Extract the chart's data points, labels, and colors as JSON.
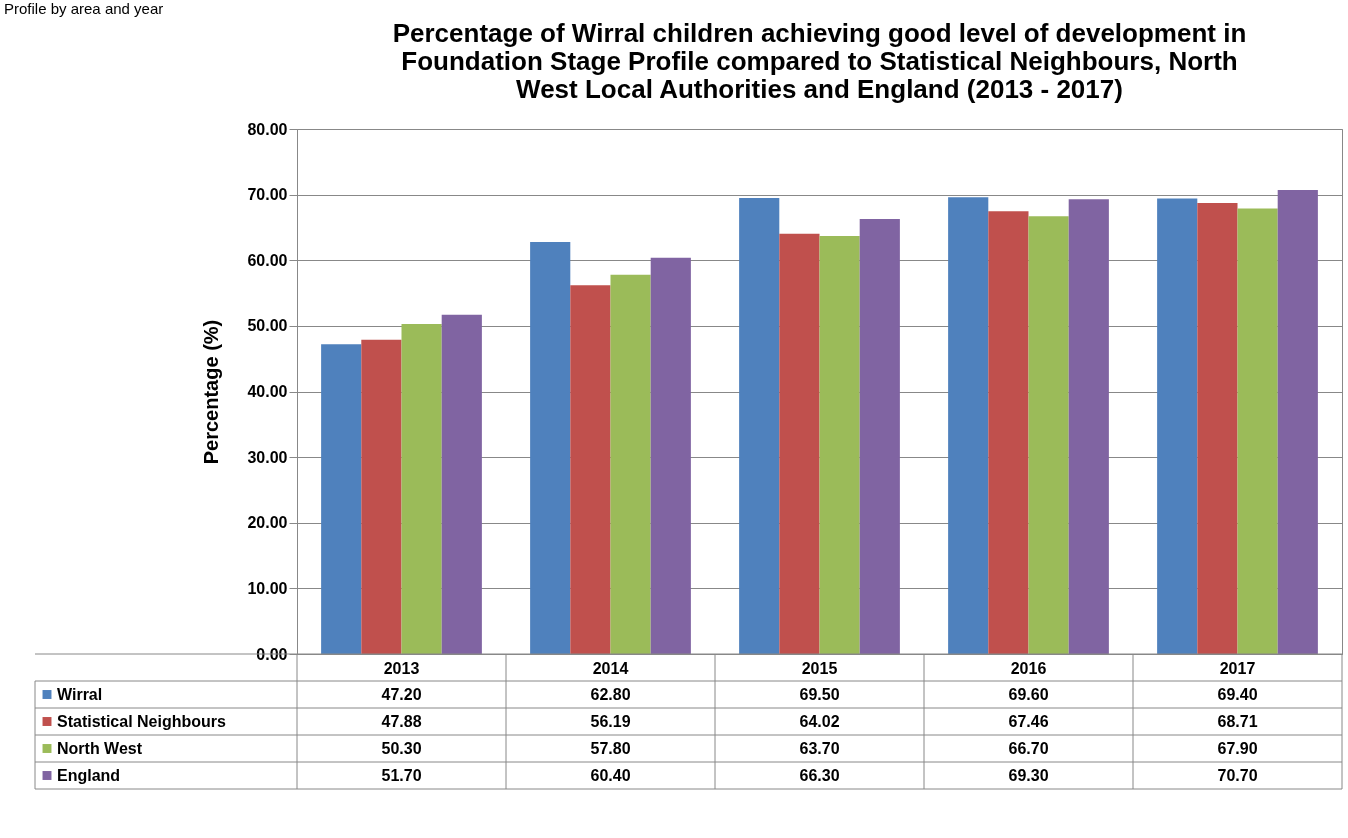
{
  "chart_data": {
    "type": "bar",
    "title": "Percentage of Wirral children achieving good level of development in\nFoundation Stage Profile compared to Statistical Neighbours, North\nWest Local Authorities and England (2013 - 2017)",
    "ylabel": "Percentage  (%)",
    "annotations": [
      "Profile by area and year"
    ],
    "categories": [
      "2013",
      "2014",
      "2015",
      "2016",
      "2017"
    ],
    "series": [
      {
        "name": "Wirral",
        "color": "#4f81bd",
        "values": [
          47.2,
          62.8,
          69.5,
          69.6,
          69.4
        ],
        "value_labels": [
          "47.20",
          "62.80",
          "69.50",
          "69.60",
          "69.40"
        ]
      },
      {
        "name": "Statistical Neighbours",
        "color": "#c0504d",
        "values": [
          47.88,
          56.19,
          64.02,
          67.46,
          68.71
        ],
        "value_labels": [
          "47.88",
          "56.19",
          "64.02",
          "67.46",
          "68.71"
        ]
      },
      {
        "name": "North West",
        "color": "#9bbb59",
        "values": [
          50.3,
          57.8,
          63.7,
          66.7,
          67.9
        ],
        "value_labels": [
          "50.30",
          "57.80",
          "63.70",
          "66.70",
          "67.90"
        ]
      },
      {
        "name": "England",
        "color": "#8064a2",
        "values": [
          51.7,
          60.4,
          66.3,
          69.3,
          70.7
        ],
        "value_labels": [
          "51.70",
          "60.40",
          "66.30",
          "69.30",
          "70.70"
        ]
      }
    ],
    "ylim": [
      0,
      80
    ],
    "yticks": [
      {
        "value": 0,
        "label": "0.00"
      },
      {
        "value": 10,
        "label": "10.00"
      },
      {
        "value": 20,
        "label": "20.00"
      },
      {
        "value": 30,
        "label": "30.00"
      },
      {
        "value": 40,
        "label": "40.00"
      },
      {
        "value": 50,
        "label": "50.00"
      },
      {
        "value": 60,
        "label": "60.00"
      },
      {
        "value": 70,
        "label": "70.00"
      },
      {
        "value": 80,
        "label": "80.00"
      }
    ],
    "grid": "y",
    "legend": "bottom left"
  }
}
